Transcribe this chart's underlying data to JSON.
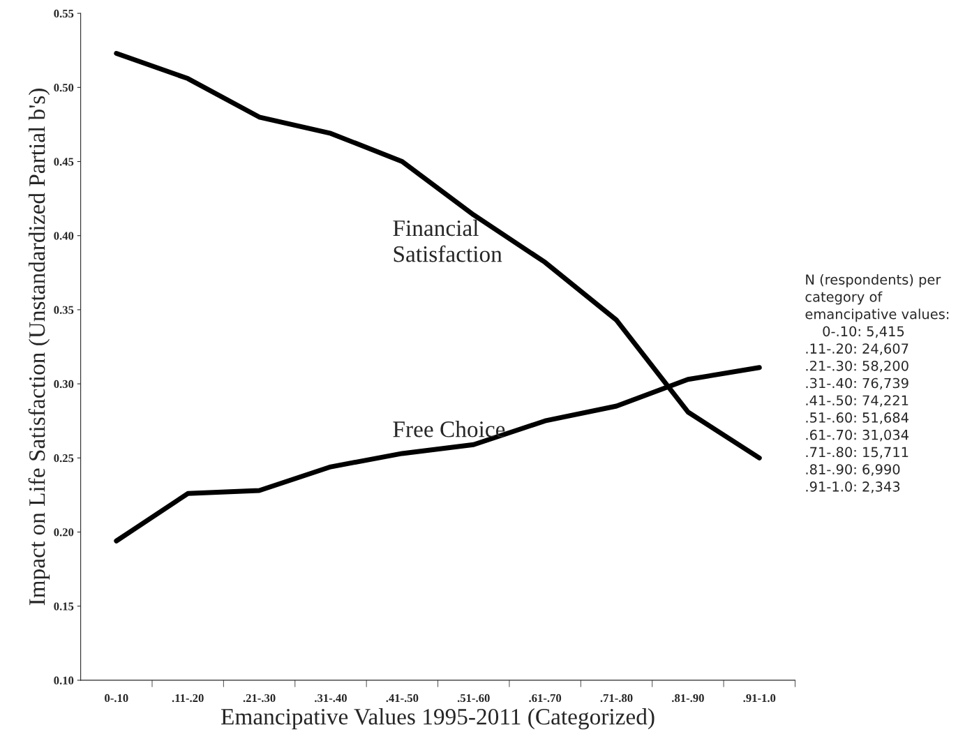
{
  "chart_data": {
    "type": "line",
    "xlabel": "Emancipative Values 1995-2011 (Categorized)",
    "ylabel": "Impact on Life Satisfaction (Unstandardized Partial b's)",
    "categories": [
      "0-.10",
      ".11-.20",
      ".21-.30",
      ".31-.40",
      ".41-.50",
      ".51-.60",
      ".61-.70",
      ".71-.80",
      ".81-.90",
      ".91-1.0"
    ],
    "series": [
      {
        "name": "Financial\nSatisfaction",
        "color": "#000000",
        "values": [
          0.523,
          0.506,
          0.48,
          0.469,
          0.45,
          0.414,
          0.382,
          0.343,
          0.281,
          0.25
        ]
      },
      {
        "name": "Free Choice",
        "color": "#000000",
        "values": [
          0.194,
          0.226,
          0.228,
          0.244,
          0.253,
          0.259,
          0.275,
          0.285,
          0.303,
          0.311
        ]
      }
    ],
    "ylim": [
      0.1,
      0.55
    ],
    "yticks": [
      {
        "value": 0.1,
        "label": "0.10"
      },
      {
        "value": 0.15,
        "label": "0.15"
      },
      {
        "value": 0.2,
        "label": "0.20"
      },
      {
        "value": 0.25,
        "label": "0.25"
      },
      {
        "value": 0.3,
        "label": "0.30"
      },
      {
        "value": 0.35,
        "label": "0.35"
      },
      {
        "value": 0.4,
        "label": "0.40"
      },
      {
        "value": 0.45,
        "label": "0.45"
      },
      {
        "value": 0.5,
        "label": "0.50"
      },
      {
        "value": 0.55,
        "label": "0.55"
      }
    ],
    "annotations": [
      "N (respondents) per\ncategory of\nemancipative values:\n    0-.10: 5,415\n.11-.20: 24,607\n.21-.30: 58,200\n.31-.40: 76,739\n.41-.50: 74,221\n.51-.60: 51,684\n.61-.70: 31,034\n.71-.80: 15,711\n.81-.90: 6,990\n.91-1.0: 2,343"
    ],
    "grid": false,
    "legend": false,
    "marker": "none",
    "line_style": "solid"
  }
}
